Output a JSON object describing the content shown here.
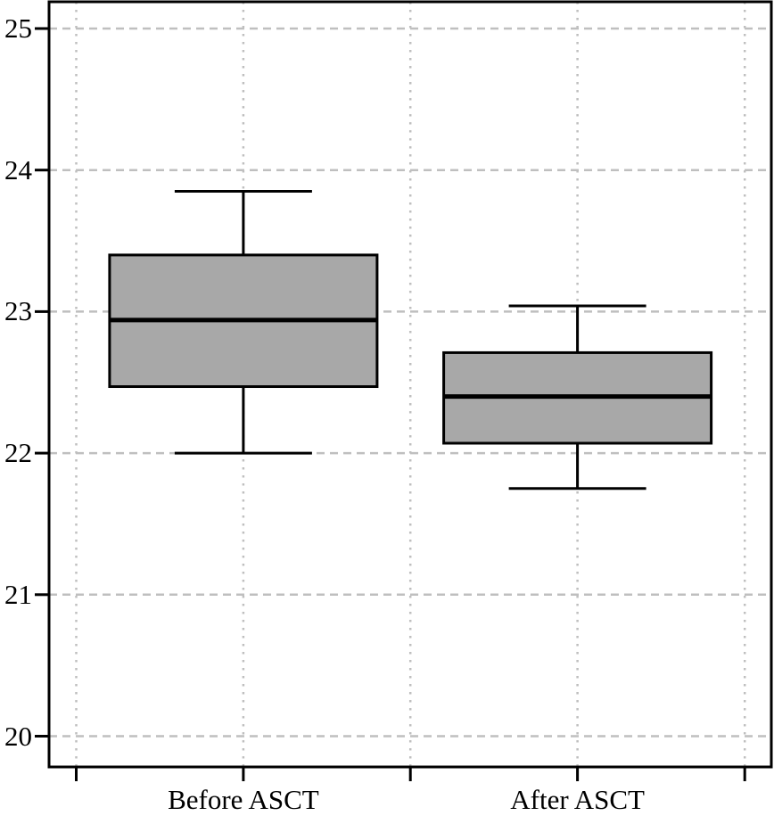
{
  "chart_data": {
    "type": "boxplot",
    "title": "",
    "xlabel": "",
    "ylabel": "",
    "categories": [
      "Before ASCT",
      "After ASCT"
    ],
    "series": [
      {
        "name": "Before ASCT",
        "whisker_low": 22.0,
        "q1": 22.47,
        "median": 22.94,
        "q3": 23.4,
        "whisker_high": 23.85
      },
      {
        "name": "After ASCT",
        "whisker_low": 21.75,
        "q1": 22.07,
        "median": 22.4,
        "q3": 22.71,
        "whisker_high": 23.04
      }
    ],
    "y_ticks": [
      25,
      24,
      23,
      22,
      21,
      20
    ],
    "ylim": [
      19.78,
      25.19
    ],
    "grid": true,
    "legend": "none",
    "colors": {
      "box_fill": "#a8a8a8",
      "box_stroke": "#000000",
      "median_stroke": "#000000",
      "grid_color": "#bfbfbf",
      "axis_color": "#000000",
      "background": "#ffffff"
    }
  }
}
